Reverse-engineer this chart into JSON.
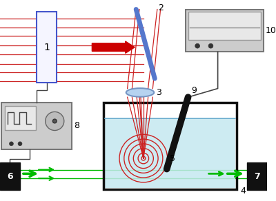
{
  "fig_width": 4.0,
  "fig_height": 2.92,
  "dpi": 100,
  "bg_color": "#ffffff",
  "laser_beam_color": "#cc2222",
  "green_beam_color": "#00bb00",
  "water_color": "#c5e8f0",
  "tank_color": "#111111",
  "device1_border": "#4455cc",
  "label_fontsize": 9,
  "red_arrow_color": "#cc0000",
  "concentric_color": "#cc2222",
  "mirror_color": "#5577cc",
  "lens_color": "#aabbdd",
  "probe_color": "#111111",
  "device_gray": "#cccccc",
  "device_screen": "#e8e8e8"
}
